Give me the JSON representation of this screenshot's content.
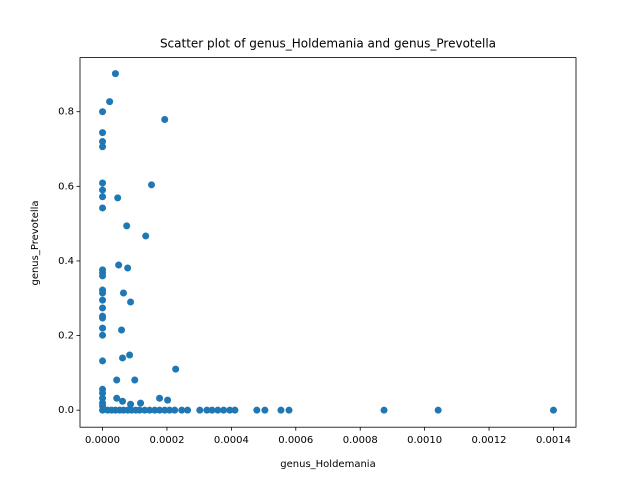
{
  "chart_data": {
    "type": "scatter",
    "title": "Scatter plot of genus_Holdemania and genus_Prevotella",
    "xlabel": "genus_Holdemania",
    "ylabel": "genus_Prevotella",
    "color": "#1f77b4",
    "x": [
      4e-05,
      2.2e-05,
      0,
      0.000193,
      0,
      0,
      0,
      0.000152,
      0,
      0,
      0,
      4.7e-05,
      0,
      7.5e-05,
      0.000134,
      5e-05,
      7.8e-05,
      0,
      0,
      0,
      6.5e-05,
      0,
      0,
      8.7e-05,
      0,
      0,
      0,
      0,
      5.9e-05,
      0,
      0,
      8.4e-05,
      6.2e-05,
      0,
      0.000227,
      4.4e-05,
      0.0001,
      0,
      0,
      0,
      4.4e-05,
      0.000177,
      6.2e-05,
      0.000118,
      8.7e-05,
      0.000202,
      0,
      0,
      0,
      1.6e-05,
      2.8e-05,
      4e-05,
      5.3e-05,
      6.5e-05,
      7.8e-05,
      9e-05,
      0.000103,
      0.000115,
      0.000131,
      0.000146,
      0.000162,
      0.000177,
      0.000193,
      0.000208,
      0.000224,
      0.000246,
      0.000264,
      0.000302,
      0.000324,
      0.00034,
      0.000358,
      0.000376,
      0.000395,
      0.000411,
      0.000479,
      0.000504,
      0.000554,
      0.000579,
      0.000874,
      0.001042,
      0.0014
    ],
    "y": [
      0.902,
      0.827,
      0.8,
      0.779,
      0.744,
      0.72,
      0.706,
      0.604,
      0.609,
      0.59,
      0.572,
      0.569,
      0.542,
      0.494,
      0.467,
      0.389,
      0.381,
      0.376,
      0.368,
      0.36,
      0.314,
      0.322,
      0.314,
      0.29,
      0.295,
      0.274,
      0.252,
      0.247,
      0.215,
      0.22,
      0.201,
      0.148,
      0.14,
      0.132,
      0.11,
      0.081,
      0.081,
      0.056,
      0.046,
      0.032,
      0.032,
      0.032,
      0.024,
      0.019,
      0.016,
      0.027,
      0.019,
      0.011,
      0,
      0,
      0,
      0,
      0,
      0,
      0,
      0,
      0,
      0,
      0,
      0,
      0,
      0,
      0,
      0,
      0,
      0,
      0,
      0,
      0,
      0,
      0,
      0,
      0,
      0,
      0,
      0,
      0,
      0,
      0,
      0,
      0
    ],
    "xlim": [
      -7e-05,
      0.00147
    ],
    "ylim": [
      -0.0456,
      0.945
    ],
    "xticks": [
      {
        "value": 0,
        "label": "0.0000"
      },
      {
        "value": 0.0002,
        "label": "0.0002"
      },
      {
        "value": 0.0004,
        "label": "0.0004"
      },
      {
        "value": 0.0006,
        "label": "0.0006"
      },
      {
        "value": 0.0008,
        "label": "0.0008"
      },
      {
        "value": 0.001,
        "label": "0.0010"
      },
      {
        "value": 0.0012,
        "label": "0.0012"
      },
      {
        "value": 0.0014,
        "label": "0.0014"
      }
    ],
    "yticks": [
      {
        "value": 0,
        "label": "0.0"
      },
      0.2,
      0.4,
      0.6,
      0.8
    ]
  }
}
